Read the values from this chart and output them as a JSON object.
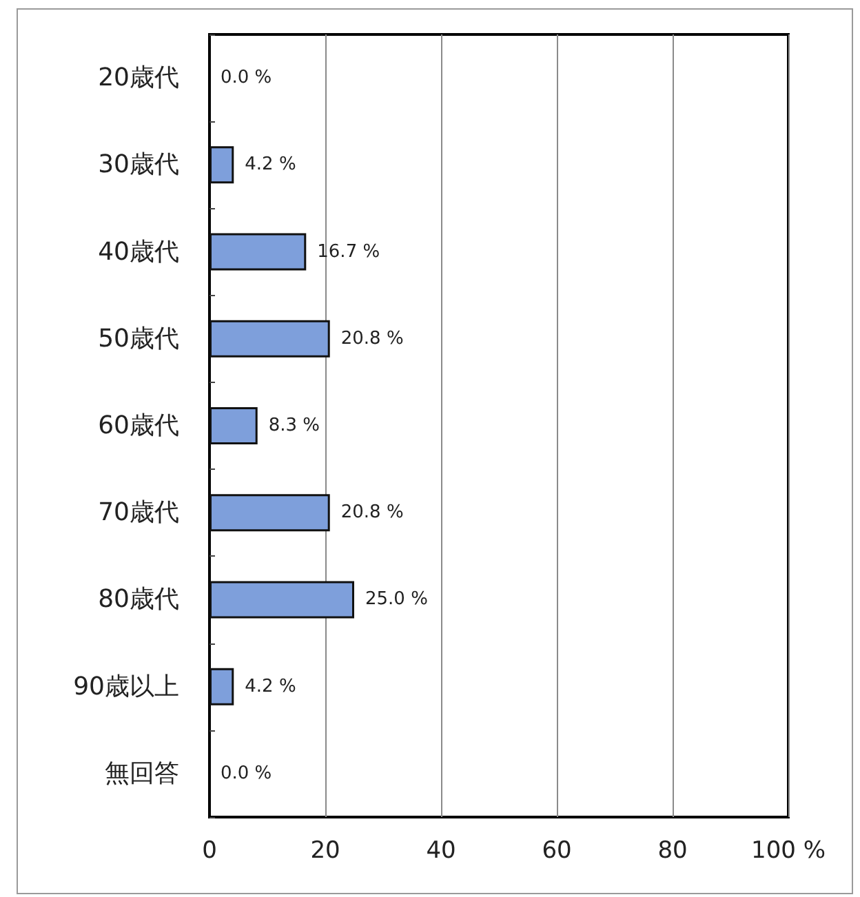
{
  "chart_data": {
    "type": "bar",
    "orientation": "horizontal",
    "categories": [
      "20歳代",
      "30歳代",
      "40歳代",
      "50歳代",
      "60歳代",
      "70歳代",
      "80歳代",
      "90歳以上",
      "無回答"
    ],
    "values": [
      0.0,
      4.2,
      16.7,
      20.8,
      8.3,
      20.8,
      25.0,
      4.2,
      0.0
    ],
    "value_labels": [
      "0.0 %",
      "4.2 %",
      "16.7 %",
      "20.8 %",
      "8.3 %",
      "20.8 %",
      "25.0 %",
      "4.2 %",
      "0.0 %"
    ],
    "color": "#7e9fdb",
    "xlim": [
      0,
      100
    ],
    "xticks": [
      0,
      20,
      40,
      60,
      80,
      {
        "value": 100,
        "label": "100 %"
      }
    ],
    "grid": "x"
  }
}
